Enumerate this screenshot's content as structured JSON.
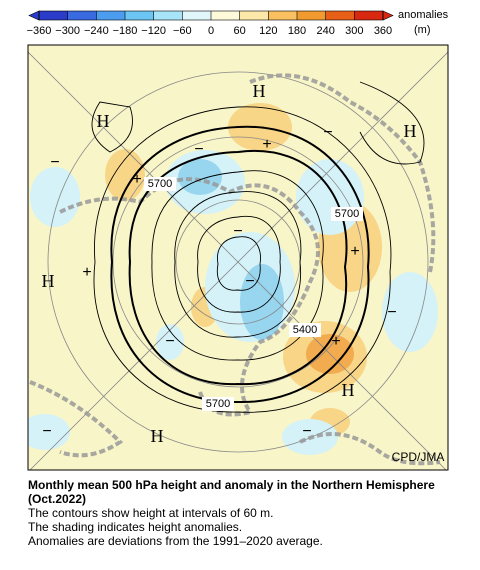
{
  "colorbar": {
    "ticks": [
      {
        "value": -360,
        "label": "−360"
      },
      {
        "value": -300,
        "label": "−300"
      },
      {
        "value": -240,
        "label": "−240"
      },
      {
        "value": -180,
        "label": "−180"
      },
      {
        "value": -120,
        "label": "−120"
      },
      {
        "value": -60,
        "label": "−60"
      },
      0,
      60,
      120,
      180,
      240,
      300,
      360
    ],
    "colors": [
      "#2a3cc8",
      "#3a6ae0",
      "#4c9cf0",
      "#6cc6f4",
      "#a8e4f8",
      "#e0f6fa",
      "#fcfad8",
      "#fce8a8",
      "#f8c060",
      "#f09a30",
      "#e86018",
      "#d82810"
    ],
    "label": "anomalies",
    "unit": "(m)"
  },
  "map": {
    "labels": [
      "H",
      "H",
      "H",
      "H",
      "H",
      "H",
      "+",
      "+",
      "+",
      "+",
      "+",
      "−",
      "−",
      "−",
      "−",
      "−",
      "−",
      "−",
      "−",
      "−"
    ],
    "contour_labels": [
      "5700",
      "5700",
      "5400",
      "5700"
    ],
    "credit": "CPD/JMA"
  },
  "caption": {
    "title": "Monthly mean 500 hPa height and anomaly in the Northern Hemisphere (Oct.2022)",
    "lines": [
      "The contours show height at intervals of 60 m.",
      "The shading indicates height anomalies.",
      "Anomalies are deviations from the 1991–2020 average."
    ]
  }
}
